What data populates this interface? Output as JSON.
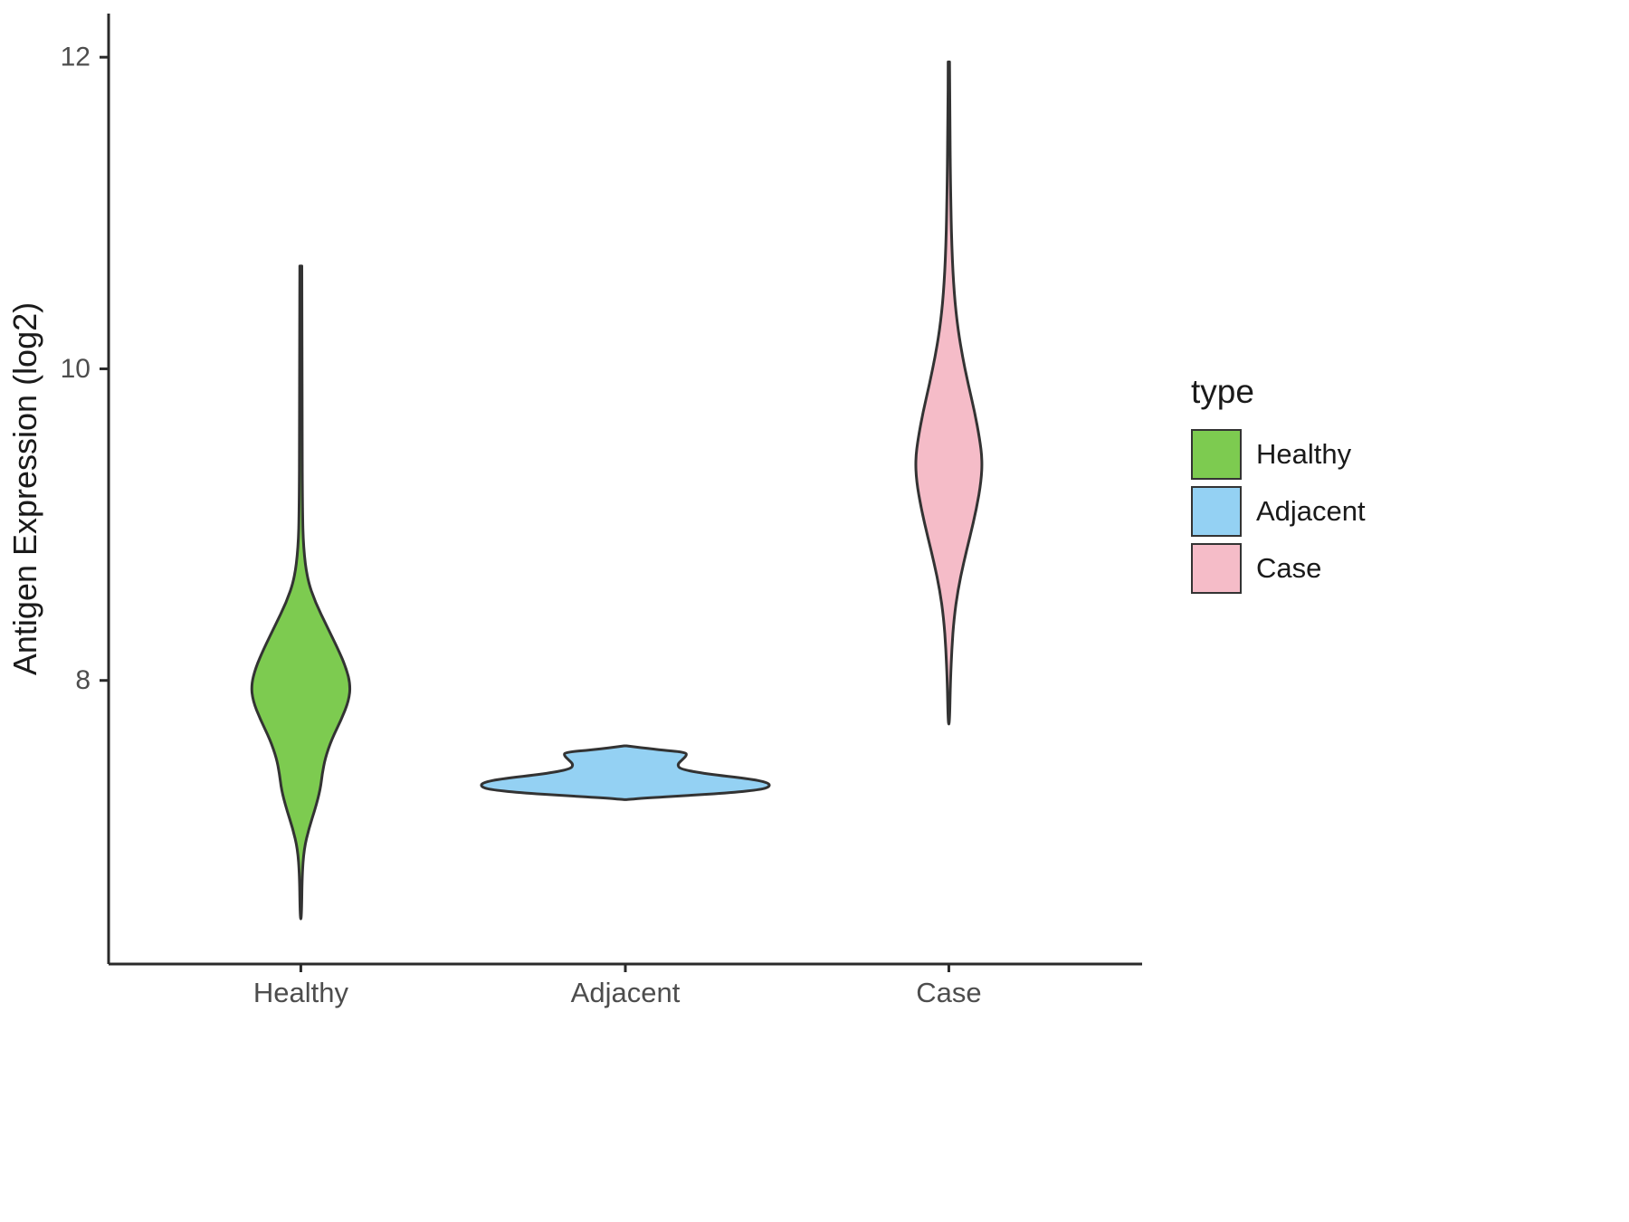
{
  "chart_data": {
    "type": "violin",
    "title": "",
    "xlabel": "",
    "ylabel": "Antigen Expression (log2)",
    "categories": [
      "Healthy",
      "Adjacent",
      "Case"
    ],
    "y_ticks": [
      8,
      10,
      12
    ],
    "ylim": [
      6.18,
      12.28
    ],
    "grid": "off",
    "legend": {
      "title": "type",
      "position": "right",
      "entries": [
        {
          "label": "Healthy",
          "color": "#7DCB50"
        },
        {
          "label": "Adjacent",
          "color": "#94D1F3"
        },
        {
          "label": "Case",
          "color": "#F5BCC8"
        }
      ]
    },
    "series": [
      {
        "name": "Healthy",
        "color": "#7DCB50",
        "category": "Healthy",
        "value_range": [
          6.47,
          10.66
        ],
        "peak_value": 7.97,
        "profile": [
          [
            10.66,
            0.003
          ],
          [
            10.2,
            0.004
          ],
          [
            9.6,
            0.004
          ],
          [
            9.1,
            0.005
          ],
          [
            8.85,
            0.008
          ],
          [
            8.65,
            0.02
          ],
          [
            8.5,
            0.045
          ],
          [
            8.35,
            0.08
          ],
          [
            8.2,
            0.115
          ],
          [
            8.08,
            0.14
          ],
          [
            7.97,
            0.153
          ],
          [
            7.87,
            0.148
          ],
          [
            7.75,
            0.125
          ],
          [
            7.62,
            0.095
          ],
          [
            7.5,
            0.075
          ],
          [
            7.4,
            0.066
          ],
          [
            7.3,
            0.06
          ],
          [
            7.18,
            0.045
          ],
          [
            7.05,
            0.025
          ],
          [
            6.92,
            0.01
          ],
          [
            6.75,
            0.004
          ],
          [
            6.47,
            0.002
          ]
        ]
      },
      {
        "name": "Adjacent",
        "color": "#94D1F3",
        "category": "Adjacent",
        "value_range": [
          7.23,
          7.58
        ],
        "peak_value": 7.32,
        "profile": [
          [
            7.58,
            0.004
          ],
          [
            7.555,
            0.1
          ],
          [
            7.54,
            0.185
          ],
          [
            7.52,
            0.19
          ],
          [
            7.49,
            0.175
          ],
          [
            7.46,
            0.16
          ],
          [
            7.43,
            0.17
          ],
          [
            7.4,
            0.25
          ],
          [
            7.37,
            0.38
          ],
          [
            7.345,
            0.44
          ],
          [
            7.32,
            0.447
          ],
          [
            7.3,
            0.42
          ],
          [
            7.28,
            0.33
          ],
          [
            7.26,
            0.18
          ],
          [
            7.245,
            0.06
          ],
          [
            7.235,
            0.004
          ]
        ]
      },
      {
        "name": "Case",
        "color": "#F5BCC8",
        "category": "Case",
        "value_range": [
          7.72,
          11.97
        ],
        "peak_value": 9.42,
        "profile": [
          [
            11.97,
            0.002
          ],
          [
            11.6,
            0.003
          ],
          [
            11.2,
            0.005
          ],
          [
            10.85,
            0.008
          ],
          [
            10.55,
            0.014
          ],
          [
            10.3,
            0.025
          ],
          [
            10.1,
            0.04
          ],
          [
            9.9,
            0.06
          ],
          [
            9.72,
            0.08
          ],
          [
            9.55,
            0.095
          ],
          [
            9.42,
            0.103
          ],
          [
            9.28,
            0.1
          ],
          [
            9.1,
            0.085
          ],
          [
            8.92,
            0.065
          ],
          [
            8.75,
            0.045
          ],
          [
            8.58,
            0.028
          ],
          [
            8.4,
            0.016
          ],
          [
            8.2,
            0.009
          ],
          [
            8.0,
            0.005
          ],
          [
            7.72,
            0.002
          ]
        ]
      }
    ],
    "style": {
      "stroke_color": "#333333",
      "axis_color": "#2a2a2a",
      "tick_label_color": "#4d4d4d",
      "axis_title_color": "#1a1a1a"
    }
  }
}
